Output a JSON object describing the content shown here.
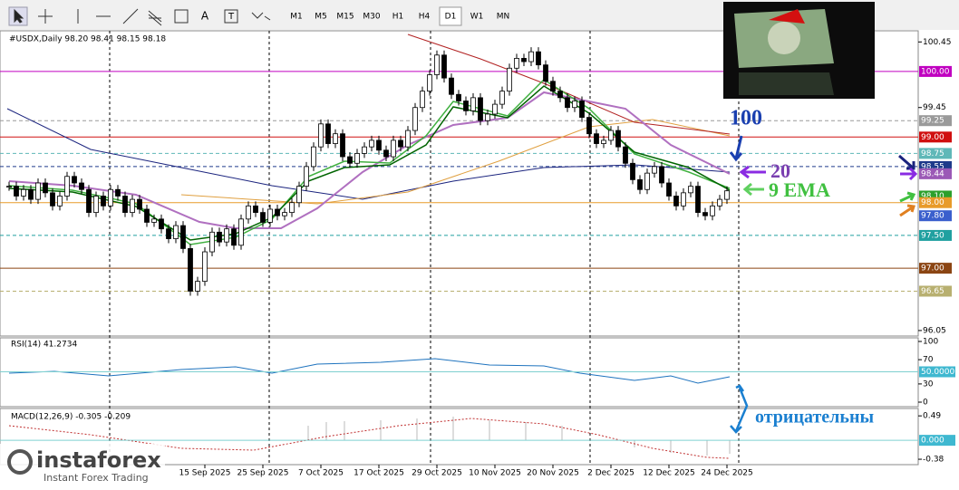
{
  "toolbar": {
    "text_button": "A",
    "timeframes": [
      "M1",
      "M5",
      "M15",
      "M30",
      "H1",
      "H4",
      "D1",
      "W1",
      "MN"
    ],
    "active_timeframe": "D1"
  },
  "chart": {
    "header": "#USDX,Daily 98.20 98.41 98.15 98.18",
    "price_ylim": [
      95.98,
      100.62
    ],
    "closes": [
      98.25,
      98.1,
      98.2,
      98.05,
      98.3,
      98.15,
      97.95,
      98.1,
      98.4,
      98.3,
      98.2,
      97.85,
      98.1,
      97.95,
      98.2,
      98.1,
      97.85,
      98.05,
      97.9,
      97.7,
      97.75,
      97.6,
      97.45,
      97.65,
      97.3,
      96.65,
      96.8,
      97.25,
      97.55,
      97.4,
      97.6,
      97.35,
      97.75,
      97.95,
      97.85,
      97.7,
      97.9,
      97.8,
      97.85,
      98.0,
      98.25,
      98.55,
      98.85,
      99.2,
      98.9,
      99.05,
      98.7,
      98.6,
      98.75,
      98.85,
      98.95,
      98.8,
      98.7,
      98.95,
      98.85,
      99.1,
      99.45,
      99.7,
      99.95,
      100.25,
      99.9,
      99.65,
      99.55,
      99.4,
      99.6,
      99.25,
      99.35,
      99.5,
      99.7,
      100.05,
      100.2,
      100.15,
      100.3,
      100.1,
      99.85,
      99.7,
      99.6,
      99.45,
      99.55,
      99.3,
      99.05,
      98.9,
      98.95,
      99.1,
      98.85,
      98.6,
      98.35,
      98.2,
      98.45,
      98.55,
      98.3,
      98.1,
      97.95,
      98.15,
      98.25,
      97.85,
      97.8,
      97.95,
      98.05,
      98.18
    ],
    "categories": [
      null,
      null,
      null,
      null,
      null,
      null,
      null,
      null,
      null,
      null,
      null,
      null,
      null,
      null,
      null,
      null,
      null,
      null,
      null,
      null,
      null,
      null,
      null,
      null,
      null,
      null,
      null,
      "15 Sep 2025",
      null,
      null,
      null,
      null,
      null,
      null,
      null,
      "25 Sep 2025",
      null,
      null,
      null,
      null,
      null,
      null,
      null,
      "7 Oct 2025",
      null,
      null,
      null,
      null,
      null,
      null,
      null,
      "17 Oct 2025",
      null,
      null,
      null,
      null,
      null,
      null,
      null,
      "29 Oct 2025",
      null,
      null,
      null,
      null,
      null,
      null,
      null,
      "10 Nov 2025",
      null,
      null,
      null,
      null,
      null,
      null,
      null,
      "20 Nov 2025",
      null,
      null,
      null,
      null,
      null,
      null,
      null,
      "2 Dec 2025",
      null,
      null,
      null,
      null,
      null,
      null,
      null,
      "12 Dec 2025",
      null,
      null,
      null,
      null,
      null,
      null,
      null,
      "24 Dec 2025"
    ],
    "price_ticks": [
      100.45,
      99.45,
      96.05
    ],
    "price_levels": [
      {
        "value": 100,
        "label": "100.00",
        "color": "#c000c0",
        "line": "solid"
      },
      {
        "value": 99.25,
        "label": "99.25",
        "color": "#9a9a9a",
        "line": "dashed"
      },
      {
        "value": 99,
        "label": "99.00",
        "color": "#d01010",
        "line": "solid"
      },
      {
        "value": 98.75,
        "label": "98.75",
        "color": "#5fb8b8",
        "line": "dashed"
      },
      {
        "value": 98.55,
        "label": "98.55",
        "color": "#1e3a8a",
        "line": "dashed"
      },
      {
        "value": 98.44,
        "label": "98.44",
        "color": "#9b59b6",
        "line": "none"
      },
      {
        "value": 98.1,
        "label": "98.10",
        "color": "#2ca02c",
        "line": "none"
      },
      {
        "value": 98,
        "label": "98.00",
        "color": "#e89b2a",
        "line": "solid"
      },
      {
        "value": 97.8,
        "label": "97.80",
        "color": "#3a5fcd",
        "line": "none"
      },
      {
        "value": 97.5,
        "label": "97.50",
        "color": "#20a0a0",
        "line": "dashed"
      },
      {
        "value": 97,
        "label": "97.00",
        "color": "#8b4513",
        "line": "solid"
      },
      {
        "value": 96.65,
        "label": "96.65",
        "color": "#b8b070",
        "line": "dashed"
      }
    ]
  },
  "rsi": {
    "header": "RSI(14) 41.2734",
    "ylim": [
      0,
      100
    ],
    "ticks": [
      100,
      70,
      {
        "value": 50,
        "label": "50.0000"
      },
      30,
      0
    ]
  },
  "macd": {
    "header": "MACD(12,26,9) -0.305 -0.209",
    "ylim": [
      -0.47,
      0.62
    ],
    "ticks": [
      0.49,
      {
        "value": 0,
        "label": "0.000"
      },
      -0.38
    ]
  },
  "annotations": {
    "ma100": "100",
    "ma20": "20",
    "ema9": "9 EMA",
    "macd_note": "отрицательны"
  },
  "logo": {
    "name": "instaforex",
    "tagline": "Instant Forex Trading"
  }
}
